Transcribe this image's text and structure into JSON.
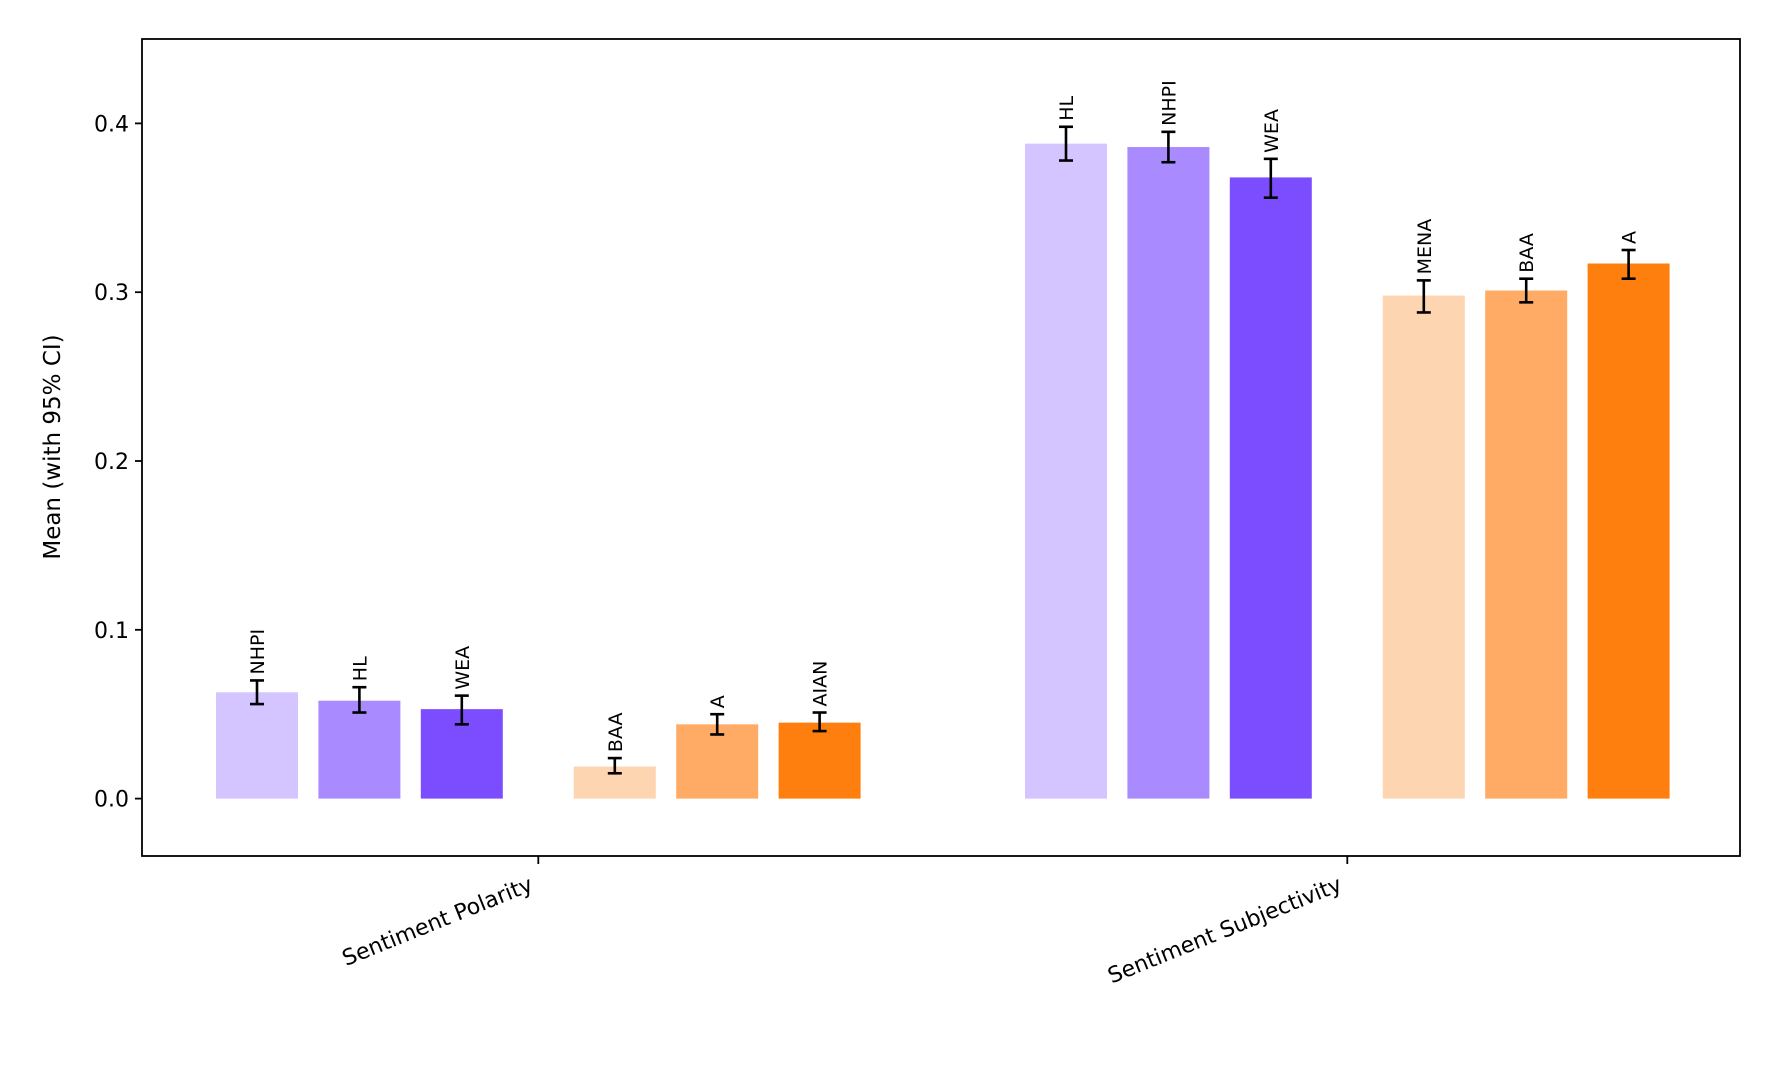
{
  "chart_data": {
    "type": "bar",
    "ylabel": "Mean (with 95% CI)",
    "ylim": [
      -0.034,
      0.45
    ],
    "yticks": [
      "0.0",
      "0.1",
      "0.2",
      "0.3",
      "0.4"
    ],
    "grid": false,
    "groups": [
      {
        "name": "Sentiment Polarity",
        "bars": [
          {
            "label": "NHPI",
            "value": 0.063,
            "ci_low": 0.056,
            "ci_high": 0.07,
            "color": "#d4c4ff"
          },
          {
            "label": "HL",
            "value": 0.058,
            "ci_low": 0.051,
            "ci_high": 0.066,
            "color": "#a98aff"
          },
          {
            "label": "WEA",
            "value": 0.053,
            "ci_low": 0.044,
            "ci_high": 0.061,
            "color": "#7c4dff"
          },
          {
            "label": "BAA",
            "value": 0.019,
            "ci_low": 0.015,
            "ci_high": 0.024,
            "color": "#fed5b1"
          },
          {
            "label": "A",
            "value": 0.044,
            "ci_low": 0.038,
            "ci_high": 0.05,
            "color": "#ffab66"
          },
          {
            "label": "AIAN",
            "value": 0.045,
            "ci_low": 0.04,
            "ci_high": 0.051,
            "color": "#ff7f0e"
          }
        ]
      },
      {
        "name": "Sentiment Subjectivity",
        "bars": [
          {
            "label": "HL",
            "value": 0.388,
            "ci_low": 0.378,
            "ci_high": 0.398,
            "color": "#d4c4ff"
          },
          {
            "label": "NHPI",
            "value": 0.386,
            "ci_low": 0.377,
            "ci_high": 0.395,
            "color": "#a98aff"
          },
          {
            "label": "WEA",
            "value": 0.368,
            "ci_low": 0.356,
            "ci_high": 0.379,
            "color": "#7c4dff"
          },
          {
            "label": "MENA",
            "value": 0.298,
            "ci_low": 0.288,
            "ci_high": 0.307,
            "color": "#fed5b1"
          },
          {
            "label": "BAA",
            "value": 0.301,
            "ci_low": 0.294,
            "ci_high": 0.308,
            "color": "#ffab66"
          },
          {
            "label": "A",
            "value": 0.317,
            "ci_low": 0.308,
            "ci_high": 0.325,
            "color": "#ff7f0e"
          }
        ]
      }
    ]
  }
}
